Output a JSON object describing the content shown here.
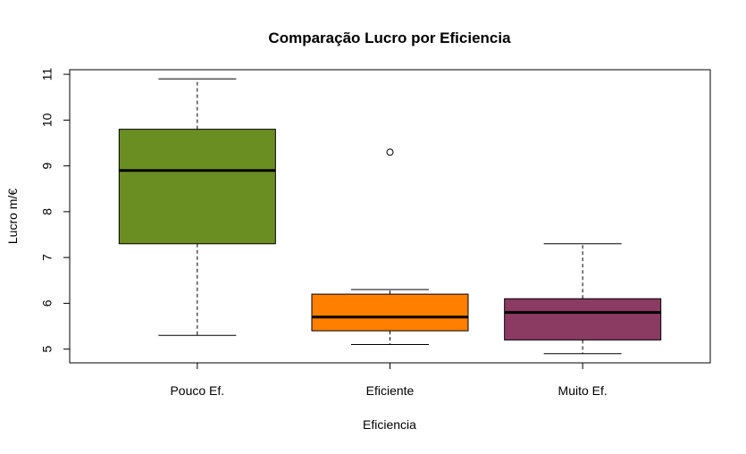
{
  "chart_data": {
    "type": "box",
    "title": "Comparação Lucro por Eficiencia",
    "xlabel": "Eficiencia",
    "ylabel": "Lucro m/€",
    "ylim": [
      4.7,
      11.1
    ],
    "y_ticks": [
      5,
      6,
      7,
      8,
      9,
      10,
      11
    ],
    "categories": [
      "Pouco Ef.",
      "Eficiente",
      "Muito Ef."
    ],
    "boxes": [
      {
        "category": "Pouco Ef.",
        "min": 5.3,
        "q1": 7.3,
        "median": 8.9,
        "q3": 9.8,
        "max": 10.9,
        "outliers": [],
        "color": "#6B8E23"
      },
      {
        "category": "Eficiente",
        "min": 5.1,
        "q1": 5.4,
        "median": 5.7,
        "q3": 6.2,
        "max": 6.3,
        "outliers": [
          9.3
        ],
        "color": "#FF7F00"
      },
      {
        "category": "Muito Ef.",
        "min": 4.9,
        "q1": 5.2,
        "median": 5.8,
        "q3": 6.1,
        "max": 7.3,
        "outliers": [],
        "color": "#8B3A62"
      }
    ],
    "grid": false,
    "legend": "none"
  }
}
